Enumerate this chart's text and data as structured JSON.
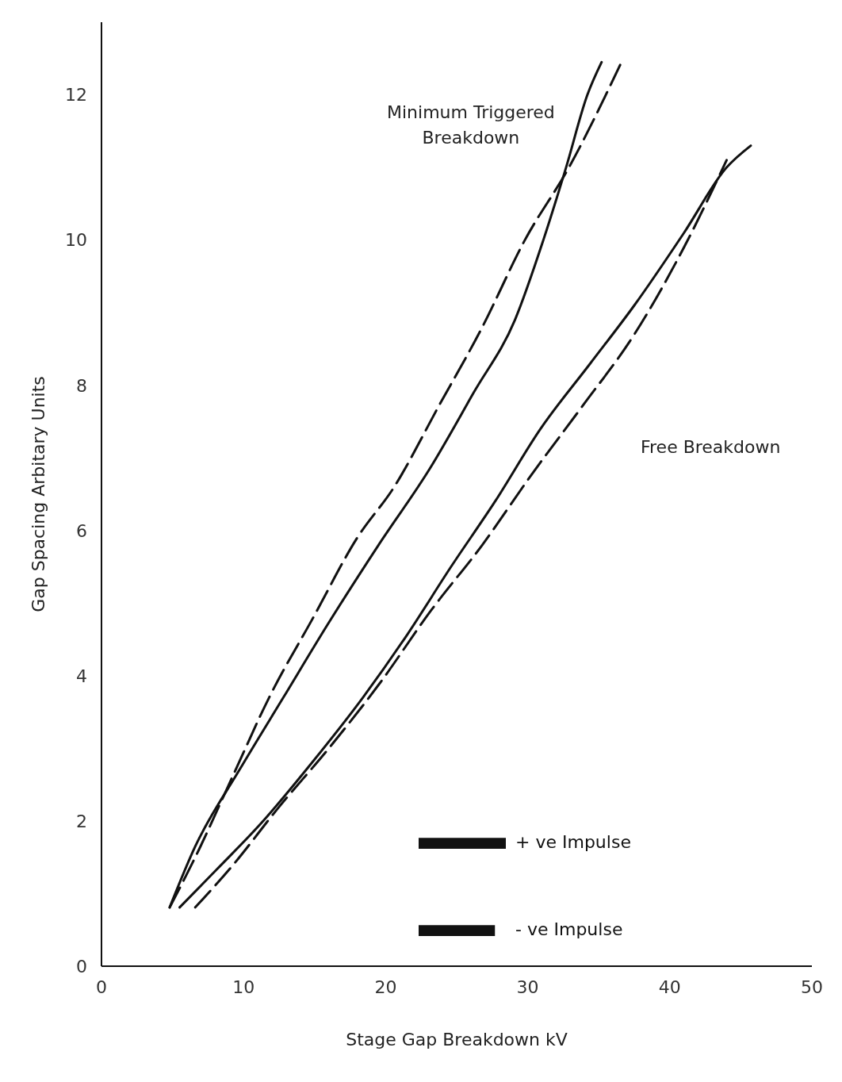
{
  "chart_data": {
    "type": "line",
    "xlabel": "Stage Gap Breakdown kV",
    "ylabel": "Gap Spacing Arbitary Units",
    "xlim": [
      0,
      50
    ],
    "ylim": [
      0,
      13
    ],
    "xticks": [
      0,
      10,
      20,
      30,
      40,
      50
    ],
    "yticks": [
      0,
      2,
      4,
      6,
      8,
      10,
      12
    ],
    "grid": false,
    "legend": "bottom right",
    "marker": "none",
    "annotations": [
      "Minimum Triggered\nBreakdown",
      "Free Breakdown"
    ],
    "series": [
      {
        "name": "+ ve Impulse",
        "color": "#111111",
        "line_style": "solid",
        "x": [
          4.8,
          6.6,
          9.7,
          12.8,
          15.9,
          19.5,
          23.1,
          26.2,
          29.1,
          31.1,
          32.7,
          34.2,
          35.2
        ],
        "values": [
          0.81,
          1.65,
          2.7,
          3.7,
          4.7,
          5.8,
          6.85,
          7.9,
          8.9,
          10.0,
          11.0,
          12.0,
          12.45
        ]
      },
      {
        "name": "- ve Impulse",
        "color": "#111111",
        "line_style": "dashed",
        "x": [
          4.8,
          6.6,
          9.2,
          11.8,
          14.9,
          18.0,
          20.6,
          23.7,
          26.8,
          29.8,
          32.9,
          36.6
        ],
        "values": [
          0.81,
          1.5,
          2.6,
          3.7,
          4.8,
          5.9,
          6.6,
          7.7,
          8.8,
          10.0,
          11.0,
          12.45
        ]
      },
      {
        "color": "#111111",
        "line_style": "solid",
        "x": [
          5.5,
          8.1,
          11.2,
          14.8,
          18.4,
          21.5,
          24.6,
          27.7,
          30.9,
          34.4,
          37.5,
          41.0,
          44.0,
          45.7
        ],
        "values": [
          0.81,
          1.33,
          1.96,
          2.8,
          3.7,
          4.56,
          5.5,
          6.4,
          7.4,
          8.3,
          9.1,
          10.1,
          11.0,
          11.3
        ]
      },
      {
        "color": "#111111",
        "line_style": "dashed",
        "x": [
          6.6,
          9.2,
          12.4,
          16.0,
          19.6,
          23.2,
          26.8,
          30.2,
          33.8,
          37.5,
          41.0,
          44.0
        ],
        "values": [
          0.81,
          1.38,
          2.17,
          3.0,
          3.9,
          4.9,
          5.8,
          6.75,
          7.7,
          8.7,
          9.9,
          11.1
        ]
      }
    ]
  }
}
